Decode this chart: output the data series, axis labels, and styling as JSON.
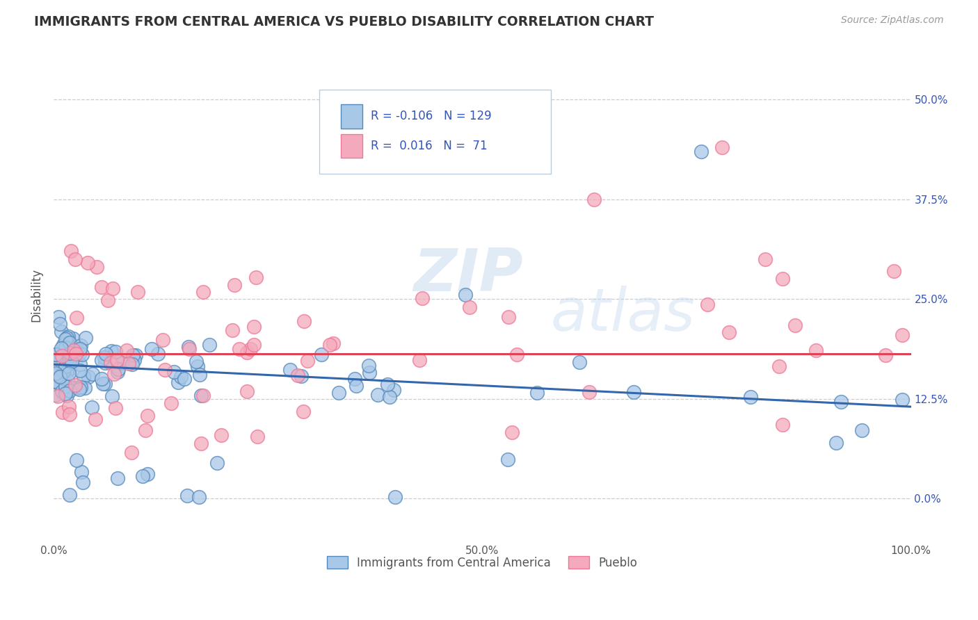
{
  "title": "IMMIGRANTS FROM CENTRAL AMERICA VS PUEBLO DISABILITY CORRELATION CHART",
  "source_text": "Source: ZipAtlas.com",
  "ylabel": "Disability",
  "legend_label_1": "Immigrants from Central America",
  "legend_label_2": "Pueblo",
  "r1": "-0.106",
  "n1": "129",
  "r2": "0.016",
  "n2": "71",
  "watermark_zip": "ZIP",
  "watermark_atlas": "atlas",
  "blue_color": "#A8C8E8",
  "pink_color": "#F4AABC",
  "blue_edge_color": "#5588BB",
  "pink_edge_color": "#EE7799",
  "blue_line_color": "#3366AA",
  "pink_line_color": "#DD4455",
  "title_color": "#333333",
  "axis_label_color": "#555555",
  "r_value_color": "#3355BB",
  "grid_color": "#CCCCCC",
  "background_color": "#FFFFFF",
  "xlim": [
    0.0,
    1.0
  ],
  "ylim": [
    -0.055,
    0.565
  ],
  "xticks": [
    0.0,
    0.25,
    0.5,
    0.75,
    1.0
  ],
  "xtick_labels": [
    "0.0%",
    "",
    "50.0%",
    "",
    "100.0%"
  ],
  "ytick_positions": [
    0.0,
    0.125,
    0.25,
    0.375,
    0.5
  ],
  "ytick_labels_right": [
    "0.0%",
    "12.5%",
    "25.0%",
    "37.5%",
    "50.0%"
  ],
  "blue_trend_x0": 0.0,
  "blue_trend_x1": 1.0,
  "blue_trend_y0": 0.168,
  "blue_trend_y1": 0.115,
  "pink_trend_y": 0.181
}
